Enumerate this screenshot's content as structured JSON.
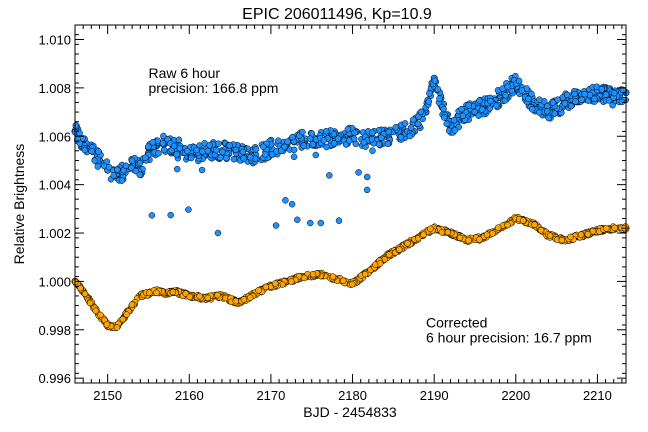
{
  "chart_data": {
    "type": "scatter",
    "title": "EPIC 206011496, Kp=10.9",
    "xlabel": "BJD - 2454833",
    "ylabel": "Relative Brightness",
    "xlim": [
      2146,
      2213.5
    ],
    "ylim": [
      0.9958,
      1.0106
    ],
    "xticks": [
      2150,
      2160,
      2170,
      2180,
      2190,
      2200,
      2210
    ],
    "xtick_labels": [
      "2150",
      "2160",
      "2170",
      "2180",
      "2190",
      "2200",
      "2210"
    ],
    "yticks": [
      0.996,
      0.998,
      1.0,
      1.002,
      1.004,
      1.006,
      1.008,
      1.01
    ],
    "ytick_labels": [
      "0.996",
      "0.998",
      "1.000",
      "1.002",
      "1.004",
      "1.006",
      "1.008",
      "1.010"
    ],
    "grid": false,
    "annotations": [
      {
        "lines": [
          "Raw 6 hour",
          "precision: 166.8 ppm"
        ],
        "x": 2155,
        "y": 1.0084
      },
      {
        "lines": [
          "Corrected",
          "6 hour precision: 16.7 ppm"
        ],
        "x": 2189,
        "y": 0.9981
      }
    ],
    "series": [
      {
        "color": "#1e90ff",
        "x": [
          2146.0,
          2147.0,
          2148.0,
          2149.0,
          2150.0,
          2151.0,
          2152.0,
          2153.0,
          2154.0,
          2155.0,
          2156.0,
          2157.0,
          2158.0,
          2159.0,
          2160.0,
          2162.0,
          2164.0,
          2166.0,
          2168.0,
          2170.0,
          2172.0,
          2174.0,
          2176.0,
          2178.0,
          2180.0,
          2182.0,
          2184.0,
          2186.0,
          2188.0,
          2189.0,
          2190.0,
          2191.0,
          2192.0,
          2194.0,
          2196.0,
          2198.0,
          2200.0,
          2202.0,
          2204.0,
          2206.0,
          2208.0,
          2210.0,
          2212.0,
          2213.5
        ],
        "y": [
          1.0062,
          1.0058,
          1.0054,
          1.005,
          1.0046,
          1.0044,
          1.0045,
          1.005,
          1.0046,
          1.0053,
          1.0056,
          1.0057,
          1.0056,
          1.0055,
          1.0052,
          1.0054,
          1.0054,
          1.0053,
          1.0052,
          1.0055,
          1.0057,
          1.0059,
          1.0058,
          1.006,
          1.006,
          1.0059,
          1.006,
          1.0062,
          1.0065,
          1.007,
          1.0084,
          1.0072,
          1.0064,
          1.007,
          1.0072,
          1.0076,
          1.0082,
          1.0074,
          1.007,
          1.0074,
          1.0076,
          1.0078,
          1.0076,
          1.0078
        ]
      },
      {
        "color": "#ffa500",
        "x": [
          2146.0,
          2147.0,
          2148.0,
          2149.0,
          2150.0,
          2151.0,
          2152.0,
          2153.0,
          2154.0,
          2155.0,
          2156.0,
          2157.0,
          2158.0,
          2160.0,
          2162.0,
          2164.0,
          2166.0,
          2168.0,
          2170.0,
          2172.0,
          2174.0,
          2176.0,
          2178.0,
          2180.0,
          2182.0,
          2184.0,
          2186.0,
          2188.0,
          2190.0,
          2192.0,
          2194.0,
          2196.0,
          2198.0,
          2200.0,
          2202.0,
          2204.0,
          2206.0,
          2208.0,
          2210.0,
          2212.0,
          2213.5
        ],
        "y": [
          1.0,
          0.9996,
          0.9991,
          0.9986,
          0.9982,
          0.9981,
          0.9985,
          0.999,
          0.9994,
          0.9995,
          0.9996,
          0.9995,
          0.9996,
          0.9994,
          0.9993,
          0.9994,
          0.9991,
          0.9995,
          0.9998,
          1.0,
          1.0002,
          1.0003,
          1.0001,
          0.9999,
          1.0004,
          1.001,
          1.0014,
          1.0018,
          1.0022,
          1.002,
          1.0017,
          1.0018,
          1.0022,
          1.0026,
          1.0024,
          1.0019,
          1.0017,
          1.0019,
          1.0021,
          1.0022,
          1.0022
        ]
      }
    ]
  }
}
